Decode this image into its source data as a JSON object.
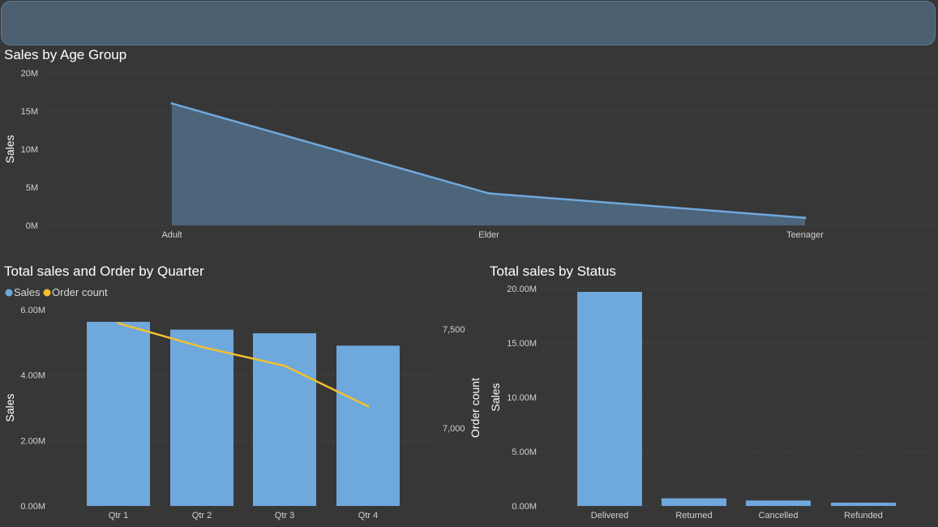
{
  "header": {},
  "chart_data": [
    {
      "id": "age",
      "type": "area",
      "title": "Sales by Age Group",
      "ylabel": "Sales",
      "categories": [
        "Adult",
        "Elder",
        "Teenager"
      ],
      "values": [
        16000000,
        4200000,
        1000000
      ],
      "ylim": [
        0,
        20000000
      ],
      "yticks": [
        0,
        5000000,
        10000000,
        15000000,
        20000000
      ],
      "ytick_labels": [
        "0M",
        "5M",
        "10M",
        "15M",
        "20M"
      ],
      "color": "#6fa8dc",
      "grid": true
    },
    {
      "id": "quarter",
      "type": "bar+line",
      "title": "Total sales and Order by Quarter",
      "ylabel": "Sales",
      "y2label": "Order count",
      "legend": [
        "Sales",
        "Order count"
      ],
      "legend_colors": [
        "#6fa8dc",
        "#f2c12e"
      ],
      "categories": [
        "Qtr 1",
        "Qtr 2",
        "Qtr 3",
        "Qtr 4"
      ],
      "series": [
        {
          "name": "Sales",
          "values": [
            5630000,
            5390000,
            5280000,
            4900000
          ]
        },
        {
          "name": "Order count",
          "values": [
            7530,
            7410,
            7315,
            7110
          ]
        }
      ],
      "ylim": [
        0,
        6000000
      ],
      "yticks": [
        0,
        2000000,
        4000000,
        6000000
      ],
      "ytick_labels": [
        "0.00M",
        "2.00M",
        "4.00M",
        "6.00M"
      ],
      "y2ticks": [
        7000,
        7500
      ],
      "y2tick_labels": [
        "7,000",
        "7,500"
      ],
      "grid": true
    },
    {
      "id": "status",
      "type": "bar",
      "title": "Total sales by Status",
      "ylabel": "Sales",
      "categories": [
        "Delivered",
        "Returned",
        "Cancelled",
        "Refunded"
      ],
      "values": [
        19700000,
        700000,
        500000,
        300000
      ],
      "ylim": [
        0,
        20000000
      ],
      "yticks": [
        0,
        5000000,
        10000000,
        15000000,
        20000000
      ],
      "ytick_labels": [
        "0.00M",
        "5.00M",
        "10.00M",
        "15.00M",
        "20.00M"
      ],
      "color": "#6fa8dc",
      "grid": true
    }
  ]
}
